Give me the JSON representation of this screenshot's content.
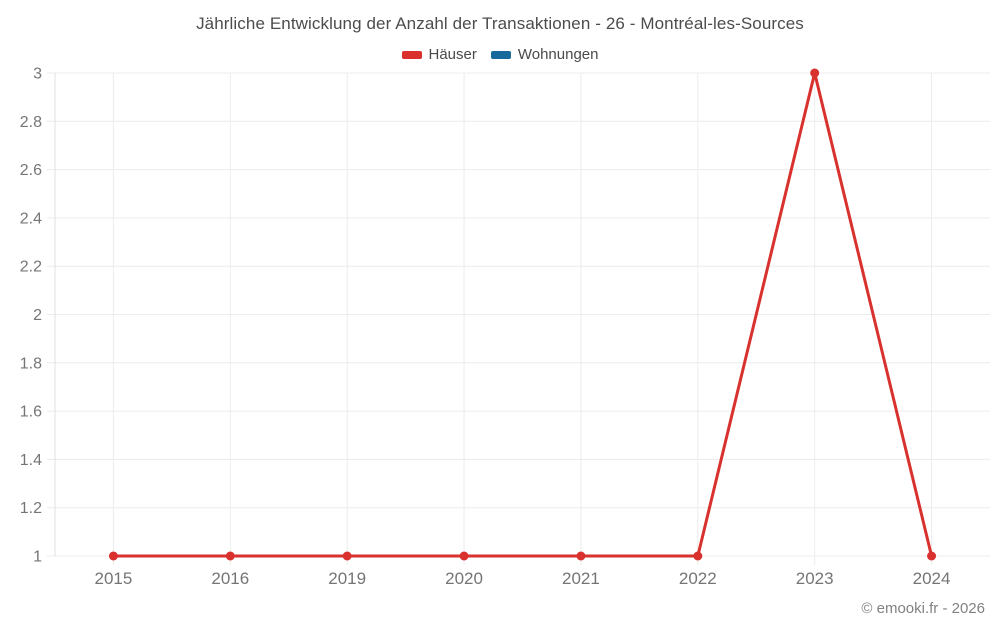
{
  "header": {
    "title": "Jährliche Entwicklung der Anzahl der Transaktionen - 26 - Montréal-les-Sources"
  },
  "footer": {
    "copyright": "© emooki.fr - 2026"
  },
  "colors": {
    "haeuser": "#d8312e",
    "wohnungen": "#17699c",
    "gridline": "#ececec",
    "axis_line": "#e0e0e0",
    "tick_text": "#757575"
  },
  "chart_data": {
    "type": "line",
    "title": "Jährliche Entwicklung der Anzahl der Transaktionen - 26 - Montréal-les-Sources",
    "categories": [
      "2015",
      "2016",
      "2019",
      "2020",
      "2021",
      "2022",
      "2023",
      "2024"
    ],
    "series": [
      {
        "name": "Häuser",
        "color": "#d8312e",
        "values": [
          1,
          1,
          1,
          1,
          1,
          1,
          3,
          1
        ]
      },
      {
        "name": "Wohnungen",
        "color": "#17699c",
        "values": [
          null,
          null,
          null,
          null,
          null,
          null,
          null,
          null
        ]
      }
    ],
    "xlabel": "",
    "ylabel": "",
    "ylim": [
      1,
      3
    ],
    "ytick_step": 0.2,
    "ytick_labels": [
      "1",
      "1.2",
      "1.4",
      "1.6",
      "1.8",
      "2",
      "2.2",
      "2.4",
      "2.6",
      "2.8",
      "3"
    ],
    "grid": true,
    "legend_position": "top"
  }
}
